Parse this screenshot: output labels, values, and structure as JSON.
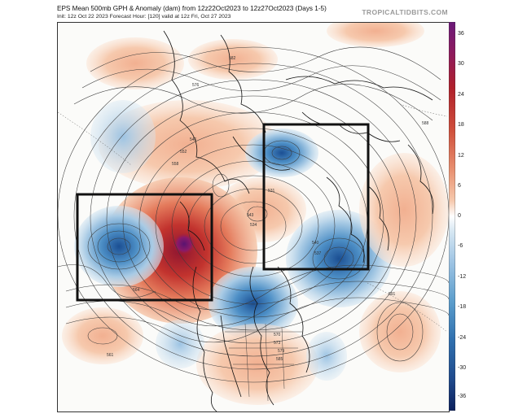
{
  "header": {
    "title": "EPS Mean 500mb GPH & Anomaly (dam) from 12z22Oct2023 to 12z27Oct2023 (Days 1-5)",
    "subtitle": "Init: 12z Oct 22 2023   Forecast Hour: [120]   valid at 12z Fri, Oct 27 2023",
    "brand": "TROPICALTIDBITS.COM"
  },
  "colorbar": {
    "ticks": [
      "36",
      "30",
      "24",
      "18",
      "12",
      "6",
      "0",
      "-6",
      "-12",
      "-18",
      "-24",
      "-30",
      "-36"
    ],
    "colors": {
      "positive_max": "#6b1a7a",
      "positive_strong": "#b0202b",
      "positive_mid": "#e07050",
      "positive_light": "#f6c9ad",
      "neutral": "#ffffff",
      "negative_light": "#bcd7ea",
      "negative_mid": "#5b9dcc",
      "negative_strong": "#1f5a9c",
      "negative_max": "#0b1f5c"
    }
  },
  "map": {
    "contour_labels": [
      "582",
      "576",
      "588",
      "591",
      "537",
      "540",
      "534",
      "531",
      "546",
      "552",
      "558",
      "564",
      "570",
      "573",
      "579",
      "585",
      "561",
      "543"
    ],
    "highlight_boxes": 2
  }
}
